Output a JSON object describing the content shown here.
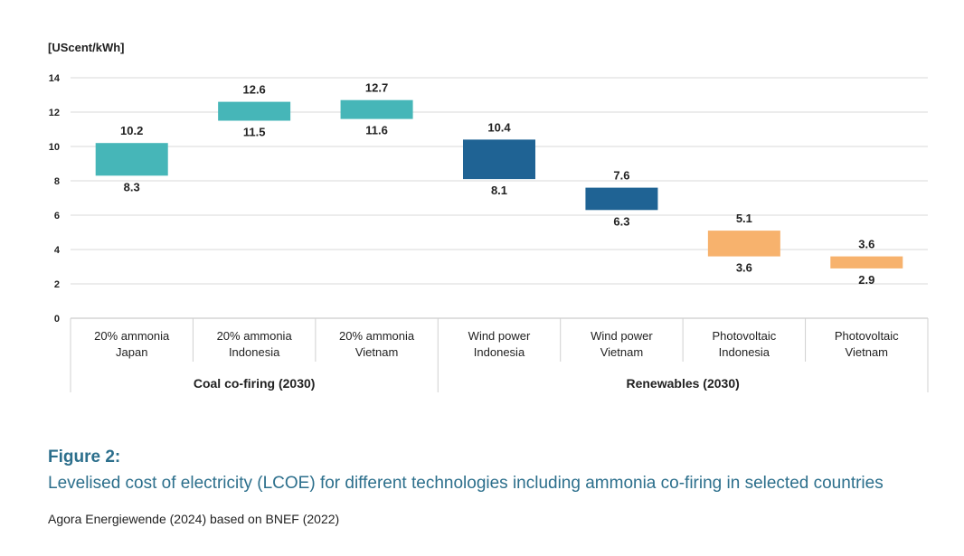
{
  "chart_data": {
    "type": "floating-bar",
    "ylabel": "[UScent/kWh]",
    "ylim": [
      0,
      14
    ],
    "yticks": [
      0,
      2,
      4,
      6,
      8,
      10,
      12,
      14
    ],
    "grid": true,
    "categories": [
      {
        "line1": "20% ammonia",
        "line2": "Japan",
        "low": 8.3,
        "high": 10.2,
        "low_label": "8.3",
        "high_label": "10.2",
        "color": "#46b6b8"
      },
      {
        "line1": "20% ammonia",
        "line2": "Indonesia",
        "low": 11.5,
        "high": 12.6,
        "low_label": "11.5",
        "high_label": "12.6",
        "color": "#46b6b8"
      },
      {
        "line1": "20% ammonia",
        "line2": "Vietnam",
        "low": 11.6,
        "high": 12.7,
        "low_label": "11.6",
        "high_label": "12.7",
        "color": "#46b6b8"
      },
      {
        "line1": "Wind power",
        "line2": "Indonesia",
        "low": 8.1,
        "high": 10.4,
        "low_label": "8.1",
        "high_label": "10.4",
        "color": "#1f6394"
      },
      {
        "line1": "Wind power",
        "line2": "Vietnam",
        "low": 6.3,
        "high": 7.6,
        "low_label": "6.3",
        "high_label": "7.6",
        "color": "#1f6394"
      },
      {
        "line1": "Photovoltaic",
        "line2": "Indonesia",
        "low": 3.6,
        "high": 5.1,
        "low_label": "3.6",
        "high_label": "5.1",
        "color": "#f7b26d"
      },
      {
        "line1": "Photovoltaic",
        "line2": "Vietnam",
        "low": 2.9,
        "high": 3.6,
        "low_label": "2.9",
        "high_label": "3.6",
        "color": "#f7b26d"
      }
    ],
    "groups": [
      {
        "label": "Coal co-firing (2030)",
        "span": 3
      },
      {
        "label": "Renewables (2030)",
        "span": 4
      }
    ]
  },
  "figure": {
    "label": "Figure 2:",
    "title": "Levelised cost of electricity (LCOE) for different technologies including ammonia co-firing in selected countries",
    "source": "Agora Energiewende (2024) based on BNEF (2022)"
  }
}
